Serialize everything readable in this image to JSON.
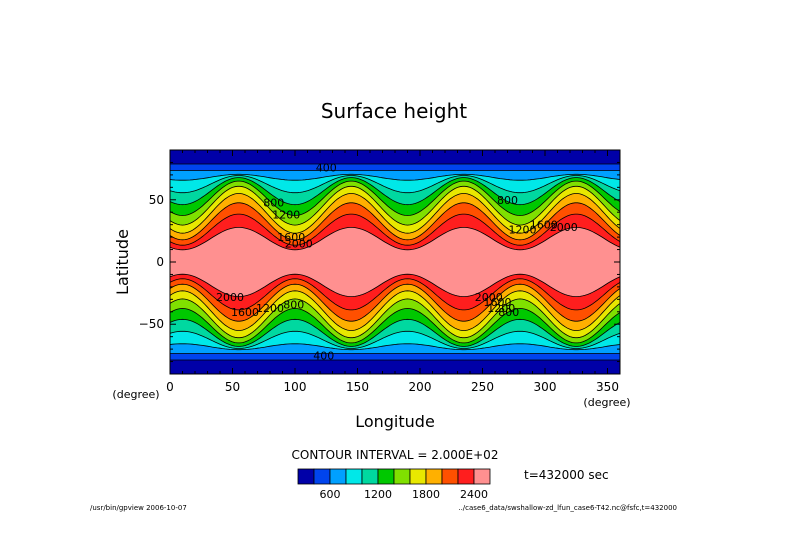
{
  "chart_data": {
    "type": "heatmap",
    "subtype": "filled-contour",
    "title": "Surface height",
    "xlabel": "Longitude",
    "ylabel": "Latitude",
    "x_unit": "(degree)",
    "y_unit": "(degree)",
    "xlim": [
      0,
      360
    ],
    "ylim": [
      -90,
      90
    ],
    "xticks": [
      "0",
      "50",
      "100",
      "150",
      "200",
      "250",
      "300",
      "350"
    ],
    "yticks": [
      "50",
      "0",
      "−50"
    ],
    "contour_interval_text": "CONTOUR INTERVAL = 2.000E+02",
    "contour_interval": 200,
    "time_label": "t=432000 sec",
    "field": {
      "num_waves": 4,
      "wave_crest_longitudes": [
        55,
        145,
        235,
        325
      ],
      "min_height": 200,
      "max_height": 2600
    },
    "contour_labels": [
      {
        "text": "400",
        "lon": 125,
        "lat": 76
      },
      {
        "text": "400",
        "lon": 123,
        "lat": -75
      },
      {
        "text": "800",
        "lon": 83,
        "lat": 48
      },
      {
        "text": "1200",
        "lon": 93,
        "lat": 38
      },
      {
        "text": "1600",
        "lon": 97,
        "lat": 20
      },
      {
        "text": "2000",
        "lon": 103,
        "lat": 15
      },
      {
        "text": "2000",
        "lon": 48,
        "lat": -28
      },
      {
        "text": "1600",
        "lon": 60,
        "lat": -40
      },
      {
        "text": "1200",
        "lon": 80,
        "lat": -37
      },
      {
        "text": "800",
        "lon": 99,
        "lat": -34
      },
      {
        "text": "800",
        "lon": 270,
        "lat": 50
      },
      {
        "text": "1200",
        "lon": 282,
        "lat": 26
      },
      {
        "text": "1600",
        "lon": 299,
        "lat": 30
      },
      {
        "text": "2000",
        "lon": 315,
        "lat": 28
      },
      {
        "text": "2000",
        "lon": 255,
        "lat": -28
      },
      {
        "text": "1600",
        "lon": 262,
        "lat": -32
      },
      {
        "text": "1200",
        "lon": 265,
        "lat": -37
      },
      {
        "text": "800",
        "lon": 271,
        "lat": -40
      }
    ],
    "colorbar": {
      "colors": [
        "#0000a8",
        "#0044ee",
        "#00a0ff",
        "#00e8e8",
        "#00d8a0",
        "#00c800",
        "#80e000",
        "#e8e800",
        "#ffb000",
        "#ff5000",
        "#ff1e1e",
        "#ff9090"
      ],
      "tick_labels": [
        "600",
        "1200",
        "1800",
        "2400"
      ],
      "tick_boundary_index": [
        2,
        5,
        8,
        11
      ]
    }
  },
  "footer": {
    "left": "/usr/bin/gpview  2006-10-07",
    "right": "../case6_data/swshallow-zd_lfun_case6-T42.nc@fsfc,t=432000"
  }
}
